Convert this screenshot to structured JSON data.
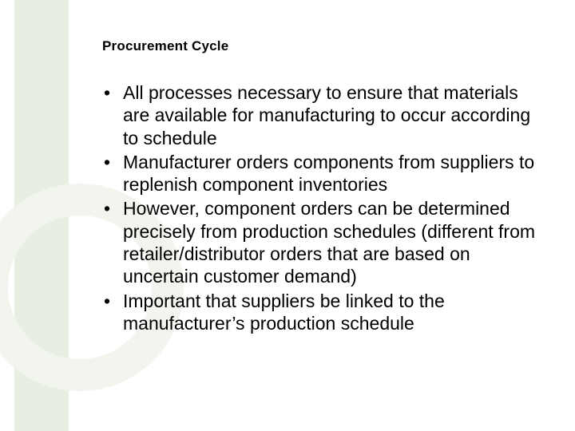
{
  "slide": {
    "title": "Procurement Cycle",
    "bullets": [
      "All processes necessary to ensure that materials are available for manufacturing to occur according to schedule",
      "Manufacturer orders components from suppliers to replenish component inventories",
      "However, component orders can be determined precisely from production schedules (different from retailer/distributor orders that are based on uncertain customer demand)",
      "Important that suppliers be linked to the manufacturer’s production schedule"
    ]
  },
  "style": {
    "background_color": "#ffffff",
    "left_band_color": "#e8efe2",
    "ring_color": "#f1f5ee",
    "text_color": "#000000",
    "title_fontsize": 17,
    "title_fontweight": "bold",
    "bullet_fontsize": 23,
    "bullet_lineheight": 1.23,
    "font_family": "Arial"
  }
}
